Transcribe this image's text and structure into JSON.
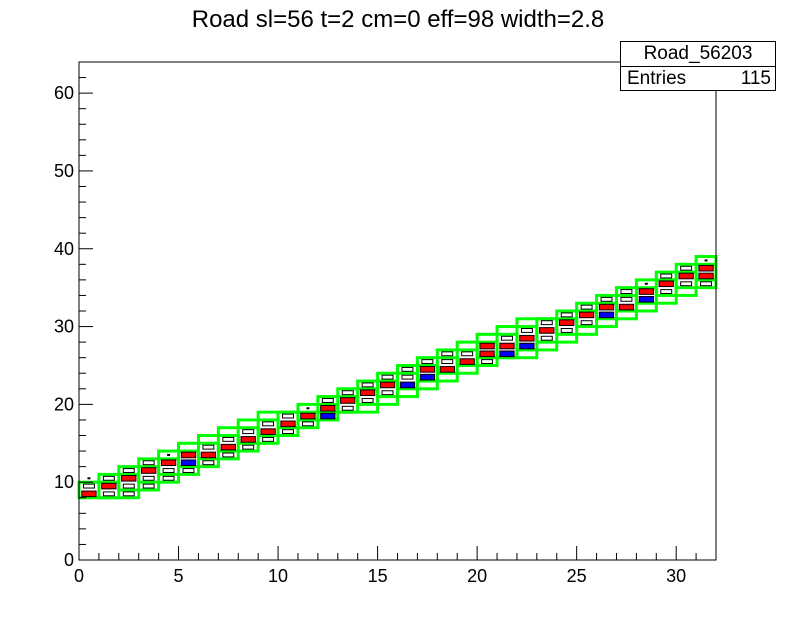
{
  "chart_data": {
    "type": "heatmap",
    "title": "Road sl=56 t=2 cm=0 eff=98 width=2.8",
    "xlim": [
      0,
      32
    ],
    "ylim": [
      0,
      64
    ],
    "x_ticks": [
      0,
      5,
      10,
      15,
      20,
      25,
      30
    ],
    "y_ticks": [
      0,
      10,
      20,
      30,
      40,
      50,
      60
    ],
    "stats_box": {
      "name": "Road_56203",
      "entries_label": "Entries",
      "entries_value": "115"
    },
    "colors": {
      "frame": "#000000",
      "road": "#00ff00",
      "hit_red": "#ff0000",
      "hit_blue": "#0000ff"
    },
    "road_boxes": [
      {
        "x0": 0,
        "x1": 2,
        "y0": 8,
        "y1": 10
      },
      {
        "x0": 1,
        "x1": 3,
        "y0": 8,
        "y1": 11
      },
      {
        "x0": 2,
        "x1": 4,
        "y0": 9,
        "y1": 12
      },
      {
        "x0": 3,
        "x1": 5,
        "y0": 10,
        "y1": 13
      },
      {
        "x0": 4,
        "x1": 6,
        "y0": 11,
        "y1": 14
      },
      {
        "x0": 5,
        "x1": 7,
        "y0": 12,
        "y1": 15
      },
      {
        "x0": 6,
        "x1": 8,
        "y0": 13,
        "y1": 16
      },
      {
        "x0": 7,
        "x1": 9,
        "y0": 14,
        "y1": 17
      },
      {
        "x0": 8,
        "x1": 10,
        "y0": 15,
        "y1": 18
      },
      {
        "x0": 9,
        "x1": 11,
        "y0": 16,
        "y1": 19
      },
      {
        "x0": 10,
        "x1": 12,
        "y0": 17,
        "y1": 19
      },
      {
        "x0": 11,
        "x1": 13,
        "y0": 18,
        "y1": 20
      },
      {
        "x0": 12,
        "x1": 14,
        "y0": 19,
        "y1": 21
      },
      {
        "x0": 13,
        "x1": 15,
        "y0": 19,
        "y1": 22
      },
      {
        "x0": 14,
        "x1": 16,
        "y0": 20,
        "y1": 23
      },
      {
        "x0": 15,
        "x1": 17,
        "y0": 21,
        "y1": 24
      },
      {
        "x0": 16,
        "x1": 18,
        "y0": 22,
        "y1": 25
      },
      {
        "x0": 17,
        "x1": 19,
        "y0": 23,
        "y1": 26
      },
      {
        "x0": 18,
        "x1": 20,
        "y0": 24,
        "y1": 27
      },
      {
        "x0": 19,
        "x1": 21,
        "y0": 25,
        "y1": 28
      },
      {
        "x0": 20,
        "x1": 22,
        "y0": 26,
        "y1": 29
      },
      {
        "x0": 21,
        "x1": 23,
        "y0": 26,
        "y1": 30
      },
      {
        "x0": 22,
        "x1": 24,
        "y0": 27,
        "y1": 31
      },
      {
        "x0": 23,
        "x1": 25,
        "y0": 28,
        "y1": 31
      },
      {
        "x0": 24,
        "x1": 26,
        "y0": 29,
        "y1": 32
      },
      {
        "x0": 25,
        "x1": 27,
        "y0": 30,
        "y1": 33
      },
      {
        "x0": 26,
        "x1": 28,
        "y0": 31,
        "y1": 34
      },
      {
        "x0": 27,
        "x1": 29,
        "y0": 32,
        "y1": 35
      },
      {
        "x0": 28,
        "x1": 30,
        "y0": 33,
        "y1": 36
      },
      {
        "x0": 29,
        "x1": 31,
        "y0": 34,
        "y1": 37
      },
      {
        "x0": 30,
        "x1": 32,
        "y0": 35,
        "y1": 38
      },
      {
        "x0": 31,
        "x1": 32,
        "y0": 36,
        "y1": 39
      }
    ],
    "bins": [
      {
        "x": 0.5,
        "y": 8.5,
        "c": 5
      },
      {
        "x": 0.5,
        "y": 9.5,
        "c": 2
      },
      {
        "x": 0.5,
        "y": 10.5,
        "c": 1
      },
      {
        "x": 1.5,
        "y": 8.5,
        "c": 2
      },
      {
        "x": 1.5,
        "y": 9.5,
        "c": 5
      },
      {
        "x": 1.5,
        "y": 10.5,
        "c": 2
      },
      {
        "x": 2.5,
        "y": 8.5,
        "c": 2
      },
      {
        "x": 2.5,
        "y": 9.5,
        "c": 2
      },
      {
        "x": 2.5,
        "y": 10.5,
        "c": 5
      },
      {
        "x": 2.5,
        "y": 11.5,
        "c": 2
      },
      {
        "x": 3.5,
        "y": 9.5,
        "c": 2
      },
      {
        "x": 3.5,
        "y": 10.5,
        "c": 2
      },
      {
        "x": 3.5,
        "y": 11.5,
        "c": 5
      },
      {
        "x": 3.5,
        "y": 12.5,
        "c": 2
      },
      {
        "x": 4.5,
        "y": 10.5,
        "c": 2
      },
      {
        "x": 4.5,
        "y": 11.5,
        "c": 2
      },
      {
        "x": 4.5,
        "y": 12.5,
        "c": 5
      },
      {
        "x": 4.5,
        "y": 13.5,
        "c": 1
      },
      {
        "x": 5.5,
        "y": 11.5,
        "c": 2
      },
      {
        "x": 5.5,
        "y": 12.5,
        "c": 4
      },
      {
        "x": 5.5,
        "y": 13.5,
        "c": 5
      },
      {
        "x": 6.5,
        "y": 12.5,
        "c": 2
      },
      {
        "x": 6.5,
        "y": 13.5,
        "c": 5
      },
      {
        "x": 6.5,
        "y": 14.5,
        "c": 2
      },
      {
        "x": 7.5,
        "y": 13.5,
        "c": 2
      },
      {
        "x": 7.5,
        "y": 14.5,
        "c": 5
      },
      {
        "x": 7.5,
        "y": 15.5,
        "c": 2
      },
      {
        "x": 8.5,
        "y": 14.5,
        "c": 2
      },
      {
        "x": 8.5,
        "y": 15.5,
        "c": 5
      },
      {
        "x": 8.5,
        "y": 16.5,
        "c": 2
      },
      {
        "x": 9.5,
        "y": 15.5,
        "c": 2
      },
      {
        "x": 9.5,
        "y": 16.5,
        "c": 5
      },
      {
        "x": 9.5,
        "y": 17.5,
        "c": 2
      },
      {
        "x": 10.5,
        "y": 16.5,
        "c": 2
      },
      {
        "x": 10.5,
        "y": 17.5,
        "c": 5
      },
      {
        "x": 10.5,
        "y": 18.5,
        "c": 2
      },
      {
        "x": 11.5,
        "y": 17.5,
        "c": 2
      },
      {
        "x": 11.5,
        "y": 18.5,
        "c": 5
      },
      {
        "x": 11.5,
        "y": 19.5,
        "c": 1
      },
      {
        "x": 12.5,
        "y": 18.5,
        "c": 4
      },
      {
        "x": 12.5,
        "y": 19.5,
        "c": 5
      },
      {
        "x": 12.5,
        "y": 20.5,
        "c": 2
      },
      {
        "x": 13.5,
        "y": 19.5,
        "c": 2
      },
      {
        "x": 13.5,
        "y": 20.5,
        "c": 5
      },
      {
        "x": 13.5,
        "y": 21.5,
        "c": 2
      },
      {
        "x": 14.5,
        "y": 20.5,
        "c": 2
      },
      {
        "x": 14.5,
        "y": 21.5,
        "c": 5
      },
      {
        "x": 14.5,
        "y": 22.5,
        "c": 2
      },
      {
        "x": 15.5,
        "y": 21.5,
        "c": 2
      },
      {
        "x": 15.5,
        "y": 22.5,
        "c": 5
      },
      {
        "x": 15.5,
        "y": 23.5,
        "c": 2
      },
      {
        "x": 16.5,
        "y": 22.5,
        "c": 4
      },
      {
        "x": 16.5,
        "y": 23.5,
        "c": 2
      },
      {
        "x": 16.5,
        "y": 24.5,
        "c": 2
      },
      {
        "x": 17.5,
        "y": 23.5,
        "c": 4
      },
      {
        "x": 17.5,
        "y": 24.5,
        "c": 5
      },
      {
        "x": 17.5,
        "y": 25.5,
        "c": 2
      },
      {
        "x": 18.5,
        "y": 24.5,
        "c": 5
      },
      {
        "x": 18.5,
        "y": 25.5,
        "c": 2
      },
      {
        "x": 18.5,
        "y": 26.5,
        "c": 2
      },
      {
        "x": 19.5,
        "y": 25.5,
        "c": 5
      },
      {
        "x": 19.5,
        "y": 26.5,
        "c": 2
      },
      {
        "x": 20.5,
        "y": 25.5,
        "c": 2
      },
      {
        "x": 20.5,
        "y": 26.5,
        "c": 5
      },
      {
        "x": 20.5,
        "y": 27.5,
        "c": 5
      },
      {
        "x": 21.5,
        "y": 26.5,
        "c": 4
      },
      {
        "x": 21.5,
        "y": 27.5,
        "c": 5
      },
      {
        "x": 21.5,
        "y": 28.5,
        "c": 2
      },
      {
        "x": 22.5,
        "y": 27.5,
        "c": 4
      },
      {
        "x": 22.5,
        "y": 28.5,
        "c": 5
      },
      {
        "x": 22.5,
        "y": 29.5,
        "c": 2
      },
      {
        "x": 23.5,
        "y": 28.5,
        "c": 2
      },
      {
        "x": 23.5,
        "y": 29.5,
        "c": 5
      },
      {
        "x": 23.5,
        "y": 30.5,
        "c": 2
      },
      {
        "x": 24.5,
        "y": 29.5,
        "c": 2
      },
      {
        "x": 24.5,
        "y": 30.5,
        "c": 5
      },
      {
        "x": 24.5,
        "y": 31.5,
        "c": 2
      },
      {
        "x": 25.5,
        "y": 30.5,
        "c": 2
      },
      {
        "x": 25.5,
        "y": 31.5,
        "c": 5
      },
      {
        "x": 25.5,
        "y": 32.5,
        "c": 2
      },
      {
        "x": 26.5,
        "y": 31.5,
        "c": 4
      },
      {
        "x": 26.5,
        "y": 32.5,
        "c": 5
      },
      {
        "x": 26.5,
        "y": 33.5,
        "c": 2
      },
      {
        "x": 27.5,
        "y": 32.5,
        "c": 5
      },
      {
        "x": 27.5,
        "y": 33.5,
        "c": 2
      },
      {
        "x": 27.5,
        "y": 34.5,
        "c": 2
      },
      {
        "x": 28.5,
        "y": 33.5,
        "c": 4
      },
      {
        "x": 28.5,
        "y": 34.5,
        "c": 5
      },
      {
        "x": 28.5,
        "y": 35.5,
        "c": 1
      },
      {
        "x": 29.5,
        "y": 34.5,
        "c": 2
      },
      {
        "x": 29.5,
        "y": 35.5,
        "c": 5
      },
      {
        "x": 29.5,
        "y": 36.5,
        "c": 2
      },
      {
        "x": 30.5,
        "y": 35.5,
        "c": 2
      },
      {
        "x": 30.5,
        "y": 36.5,
        "c": 5
      },
      {
        "x": 30.5,
        "y": 37.5,
        "c": 2
      },
      {
        "x": 31.5,
        "y": 35.5,
        "c": 2
      },
      {
        "x": 31.5,
        "y": 36.5,
        "c": 5
      },
      {
        "x": 31.5,
        "y": 37.5,
        "c": 5
      },
      {
        "x": 31.5,
        "y": 38.5,
        "c": 1
      }
    ]
  }
}
